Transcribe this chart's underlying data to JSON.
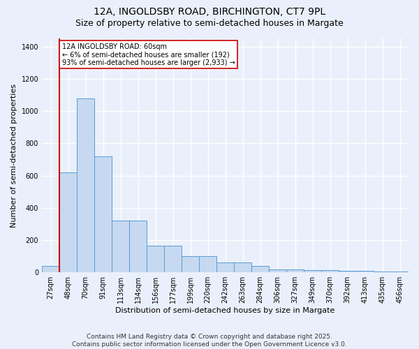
{
  "title_line1": "12A, INGOLDSBY ROAD, BIRCHINGTON, CT7 9PL",
  "title_line2": "Size of property relative to semi-detached houses in Margate",
  "xlabel": "Distribution of semi-detached houses by size in Margate",
  "ylabel": "Number of semi-detached properties",
  "footnote": "Contains HM Land Registry data © Crown copyright and database right 2025.\nContains public sector information licensed under the Open Government Licence v3.0.",
  "bar_labels": [
    "27sqm",
    "48sqm",
    "70sqm",
    "91sqm",
    "113sqm",
    "134sqm",
    "156sqm",
    "177sqm",
    "199sqm",
    "220sqm",
    "242sqm",
    "263sqm",
    "284sqm",
    "306sqm",
    "327sqm",
    "349sqm",
    "370sqm",
    "392sqm",
    "413sqm",
    "435sqm",
    "456sqm"
  ],
  "bar_values": [
    40,
    620,
    1080,
    720,
    320,
    320,
    165,
    165,
    100,
    100,
    60,
    60,
    40,
    20,
    20,
    15,
    15,
    10,
    10,
    5,
    5
  ],
  "bar_color": "#c6d9f0",
  "bar_edgecolor": "#5b9bd5",
  "vline_x": 0.5,
  "vline_color": "#cc0000",
  "annotation_text": "12A INGOLDSBY ROAD: 60sqm\n← 6% of semi-detached houses are smaller (192)\n93% of semi-detached houses are larger (2,933) →",
  "ylim": [
    0,
    1450
  ],
  "yticks": [
    0,
    200,
    400,
    600,
    800,
    1000,
    1200,
    1400
  ],
  "bg_color": "#eaf0fb",
  "plot_bg_color": "#eaf0fb",
  "grid_color": "#ffffff",
  "title_fontsize": 10,
  "subtitle_fontsize": 9,
  "footnote_fontsize": 6.5,
  "axis_label_fontsize": 8,
  "tick_fontsize": 7
}
